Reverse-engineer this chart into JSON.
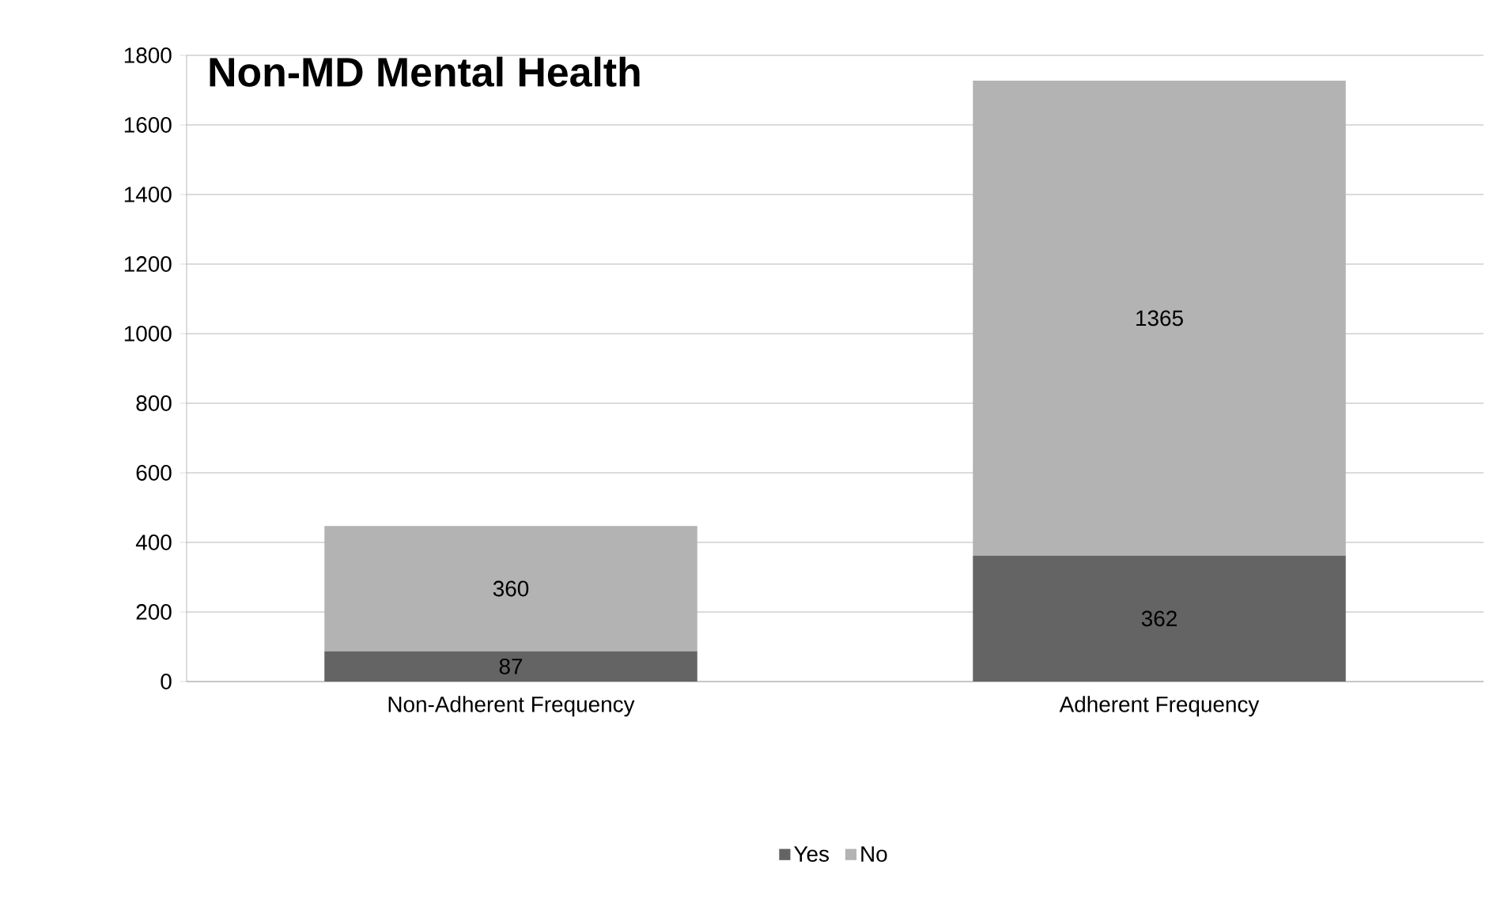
{
  "chart_data": {
    "type": "bar",
    "title": "Non-MD Mental Health",
    "categories": [
      "Non-Adherent Frequency",
      "Adherent Frequency"
    ],
    "series": [
      {
        "name": "Yes",
        "color": "#646464",
        "values": [
          87,
          362
        ]
      },
      {
        "name": "No",
        "color": "#b3b3b3",
        "values": [
          360,
          1365
        ]
      }
    ],
    "stacked": true,
    "ylim": [
      0,
      1800
    ],
    "yticks": [
      0,
      200,
      400,
      600,
      800,
      1000,
      1200,
      1400,
      1600,
      1800
    ],
    "grid": "y",
    "legend": "bottom",
    "data_labels": true
  }
}
